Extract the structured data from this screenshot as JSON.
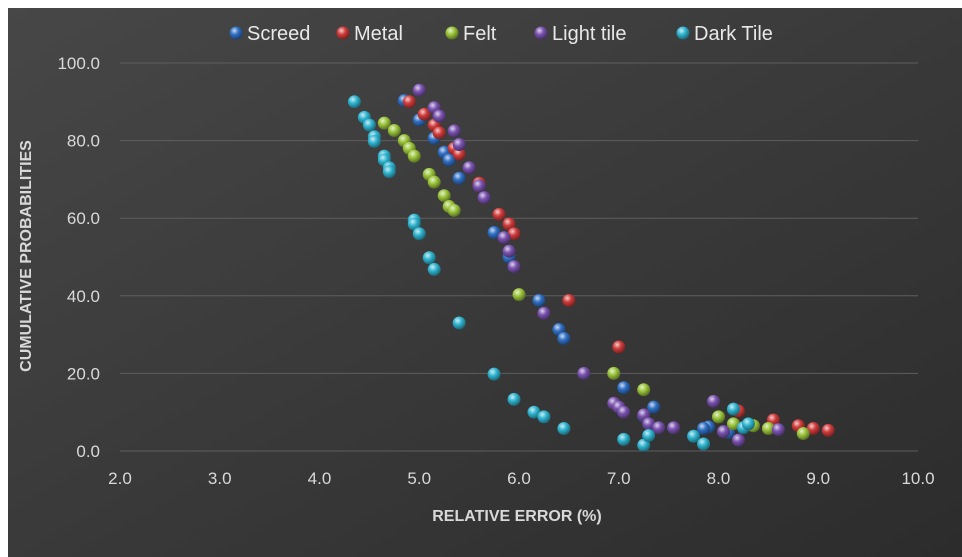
{
  "chart_data": {
    "type": "scatter",
    "title": "",
    "xlabel": "RELATIVE ERROR (%)",
    "ylabel": "CUMULATIVE PROBABILITIES",
    "xlim": [
      2.0,
      10.0
    ],
    "ylim": [
      0.0,
      100.0
    ],
    "x_ticks": [
      "2.0",
      "3.0",
      "4.0",
      "5.0",
      "6.0",
      "7.0",
      "8.0",
      "9.0",
      "10.0"
    ],
    "y_ticks": [
      "0.0",
      "20.0",
      "40.0",
      "60.0",
      "80.0",
      "100.0"
    ],
    "grid": true,
    "legend_position": "top",
    "background_color": "#3a3a3a",
    "series": [
      {
        "name": "Screed",
        "color": "#2f6fc4",
        "points": [
          [
            4.85,
            90.3
          ],
          [
            5.0,
            85.3
          ],
          [
            5.15,
            80.6
          ],
          [
            5.25,
            77.0
          ],
          [
            5.3,
            75.0
          ],
          [
            5.4,
            70.3
          ],
          [
            5.75,
            56.3
          ],
          [
            5.9,
            50.0
          ],
          [
            6.2,
            38.8
          ],
          [
            6.4,
            31.3
          ],
          [
            6.45,
            29.0
          ],
          [
            7.05,
            16.3
          ],
          [
            7.35,
            11.3
          ],
          [
            7.25,
            9.0
          ],
          [
            7.9,
            6.2
          ],
          [
            7.85,
            5.8
          ],
          [
            8.1,
            4.8
          ]
        ]
      },
      {
        "name": "Metal",
        "color": "#d03a3a",
        "points": [
          [
            4.9,
            90.0
          ],
          [
            5.05,
            86.8
          ],
          [
            5.15,
            84.0
          ],
          [
            5.2,
            82.0
          ],
          [
            5.35,
            78.0
          ],
          [
            5.4,
            76.5
          ],
          [
            5.6,
            69.0
          ],
          [
            5.8,
            61.0
          ],
          [
            5.9,
            58.5
          ],
          [
            5.95,
            56.0
          ],
          [
            6.5,
            38.8
          ],
          [
            7.0,
            26.8
          ],
          [
            8.2,
            10.3
          ],
          [
            8.55,
            8.0
          ],
          [
            8.8,
            6.5
          ],
          [
            8.95,
            5.8
          ],
          [
            9.1,
            5.3
          ]
        ]
      },
      {
        "name": "Felt",
        "color": "#9ac43a",
        "points": [
          [
            4.65,
            84.5
          ],
          [
            4.75,
            82.6
          ],
          [
            4.85,
            80.0
          ],
          [
            4.9,
            78.0
          ],
          [
            4.95,
            76.0
          ],
          [
            5.1,
            71.3
          ],
          [
            5.15,
            69.3
          ],
          [
            5.25,
            65.8
          ],
          [
            5.3,
            63.0
          ],
          [
            5.35,
            62.0
          ],
          [
            6.0,
            40.3
          ],
          [
            6.95,
            20.0
          ],
          [
            7.25,
            15.8
          ],
          [
            8.0,
            8.8
          ],
          [
            8.15,
            7.0
          ],
          [
            8.35,
            6.5
          ],
          [
            8.5,
            5.8
          ],
          [
            8.85,
            4.5
          ]
        ]
      },
      {
        "name": "Light tile",
        "color": "#7a52b0",
        "points": [
          [
            5.0,
            93.0
          ],
          [
            5.15,
            88.5
          ],
          [
            5.2,
            86.3
          ],
          [
            5.35,
            82.5
          ],
          [
            5.4,
            79.0
          ],
          [
            5.5,
            73.0
          ],
          [
            5.6,
            68.3
          ],
          [
            5.65,
            65.3
          ],
          [
            5.85,
            55.0
          ],
          [
            5.9,
            51.5
          ],
          [
            5.95,
            47.5
          ],
          [
            6.25,
            35.5
          ],
          [
            6.65,
            20.0
          ],
          [
            6.95,
            12.3
          ],
          [
            7.0,
            11.3
          ],
          [
            7.05,
            10.0
          ],
          [
            7.25,
            9.3
          ],
          [
            7.3,
            7.0
          ],
          [
            7.4,
            6.0
          ],
          [
            7.55,
            6.0
          ],
          [
            7.95,
            12.8
          ],
          [
            8.05,
            5.0
          ],
          [
            8.2,
            2.8
          ],
          [
            8.6,
            5.5
          ]
        ]
      },
      {
        "name": "Dark Tile",
        "color": "#2fb4d0",
        "points": [
          [
            4.35,
            90.0
          ],
          [
            4.45,
            86.0
          ],
          [
            4.5,
            84.0
          ],
          [
            4.55,
            81.0
          ],
          [
            4.55,
            79.8
          ],
          [
            4.65,
            76.0
          ],
          [
            4.65,
            75.0
          ],
          [
            4.7,
            73.0
          ],
          [
            4.7,
            72.0
          ],
          [
            4.95,
            59.5
          ],
          [
            4.95,
            58.5
          ],
          [
            5.0,
            56.0
          ],
          [
            5.1,
            49.8
          ],
          [
            5.15,
            46.8
          ],
          [
            5.4,
            33.0
          ],
          [
            5.75,
            19.8
          ],
          [
            5.95,
            13.3
          ],
          [
            6.15,
            10.0
          ],
          [
            6.25,
            8.8
          ],
          [
            6.45,
            5.8
          ],
          [
            7.05,
            3.0
          ],
          [
            7.25,
            1.5
          ],
          [
            7.3,
            4.0
          ],
          [
            7.75,
            3.8
          ],
          [
            7.85,
            1.8
          ],
          [
            8.15,
            10.8
          ],
          [
            8.25,
            6.0
          ],
          [
            8.3,
            7.0
          ]
        ]
      }
    ]
  }
}
